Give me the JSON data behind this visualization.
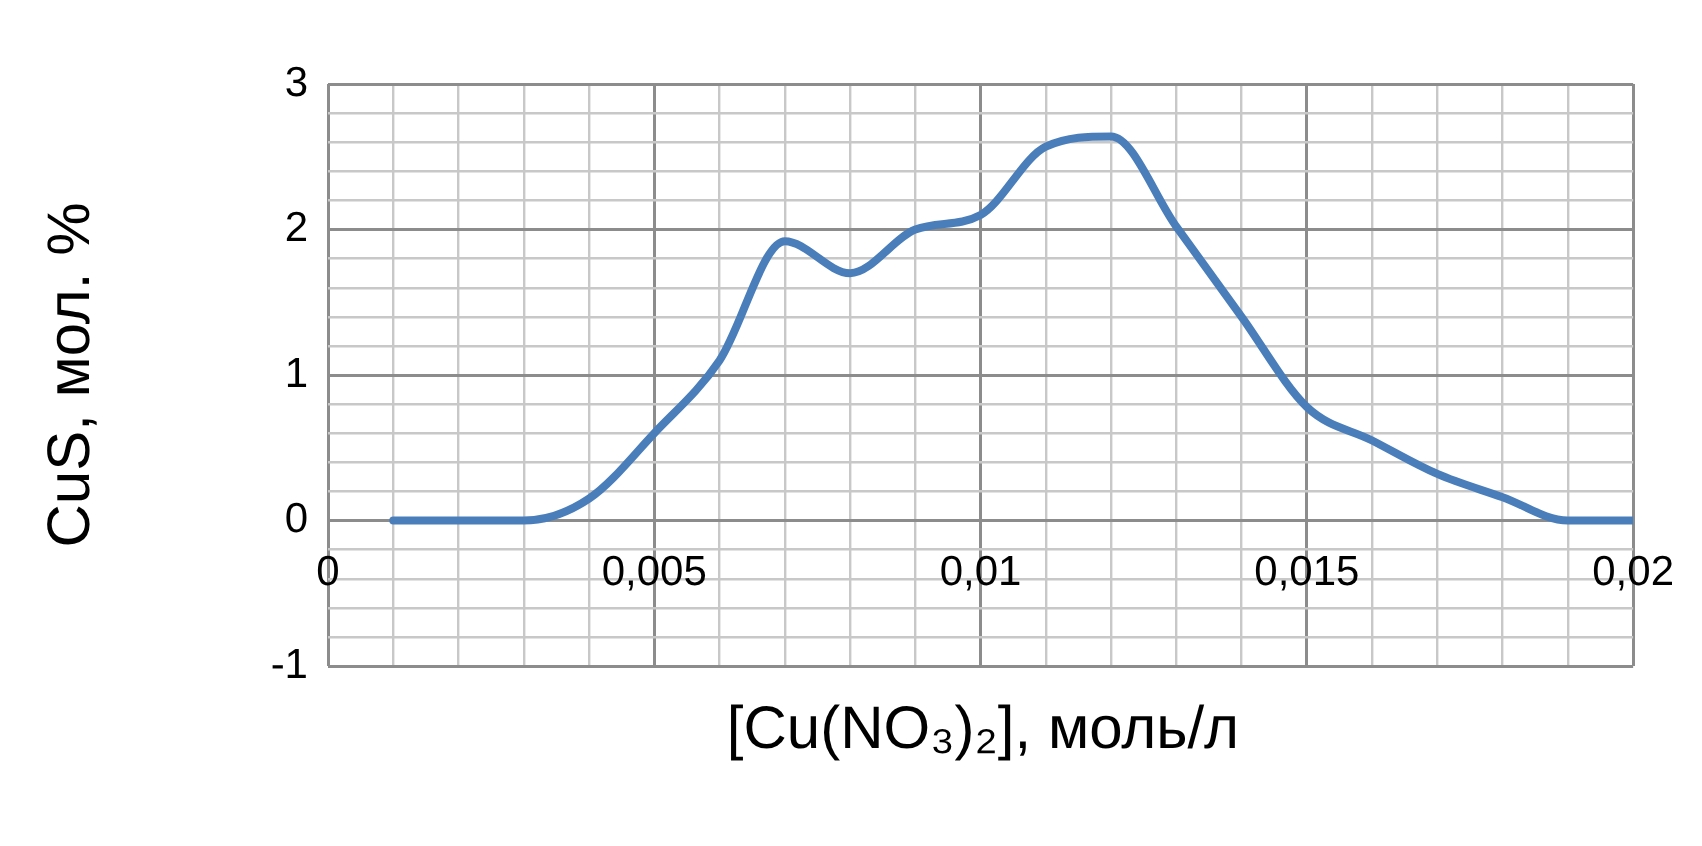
{
  "chart_data": {
    "type": "line",
    "xlabel": "[Cu(NO₃)₂], моль/л",
    "ylabel": "CuS, мол. %",
    "x": [
      0.001,
      0.002,
      0.003,
      0.004,
      0.005,
      0.006,
      0.007,
      0.008,
      0.009,
      0.01,
      0.011,
      0.012,
      0.013,
      0.014,
      0.015,
      0.016,
      0.017,
      0.018,
      0.019,
      0.02
    ],
    "series": [
      {
        "color": "#4a7ebb",
        "values": [
          0,
          0,
          0,
          0.15,
          0.6,
          1.1,
          1.92,
          1.7,
          2.0,
          2.1,
          2.57,
          2.64,
          2.02,
          1.4,
          0.78,
          0.55,
          0.32,
          0.16,
          0,
          0
        ]
      }
    ],
    "xlim": [
      0,
      0.02
    ],
    "xticks": [
      {
        "value": 0,
        "label": "0"
      },
      {
        "value": 0.001,
        "label": null
      },
      {
        "value": 0.002,
        "label": null
      },
      {
        "value": 0.003,
        "label": null
      },
      {
        "value": 0.004,
        "label": null
      },
      {
        "value": 0.005,
        "label": "0,005"
      },
      {
        "value": 0.006,
        "label": null
      },
      {
        "value": 0.007,
        "label": null
      },
      {
        "value": 0.008,
        "label": null
      },
      {
        "value": 0.009,
        "label": null
      },
      {
        "value": 0.01,
        "label": "0,01"
      },
      {
        "value": 0.011,
        "label": null
      },
      {
        "value": 0.012,
        "label": null
      },
      {
        "value": 0.013,
        "label": null
      },
      {
        "value": 0.014,
        "label": null
      },
      {
        "value": 0.015,
        "label": "0,015"
      },
      {
        "value": 0.016,
        "label": null
      },
      {
        "value": 0.017,
        "label": null
      },
      {
        "value": 0.018,
        "label": null
      },
      {
        "value": 0.019,
        "label": null
      },
      {
        "value": 0.02,
        "label": "0,02"
      }
    ],
    "ylim": [
      -1,
      3
    ],
    "yticks": [
      -1,
      {
        "value": -0.8,
        "label": null
      },
      {
        "value": -0.6,
        "label": null
      },
      {
        "value": -0.4,
        "label": null
      },
      {
        "value": -0.2,
        "label": null
      },
      0,
      {
        "value": 0.2,
        "label": null
      },
      {
        "value": 0.4,
        "label": null
      },
      {
        "value": 0.6,
        "label": null
      },
      {
        "value": 0.8,
        "label": null
      },
      1,
      {
        "value": 1.2,
        "label": null
      },
      {
        "value": 1.4,
        "label": null
      },
      {
        "value": 1.6,
        "label": null
      },
      {
        "value": 1.8,
        "label": null
      },
      2,
      {
        "value": 2.2,
        "label": null
      },
      {
        "value": 2.4,
        "label": null
      },
      {
        "value": 2.6,
        "label": null
      },
      {
        "value": 2.8,
        "label": null
      },
      3
    ],
    "grid": true,
    "marker": "none",
    "line_style": "solid",
    "legend": false
  }
}
